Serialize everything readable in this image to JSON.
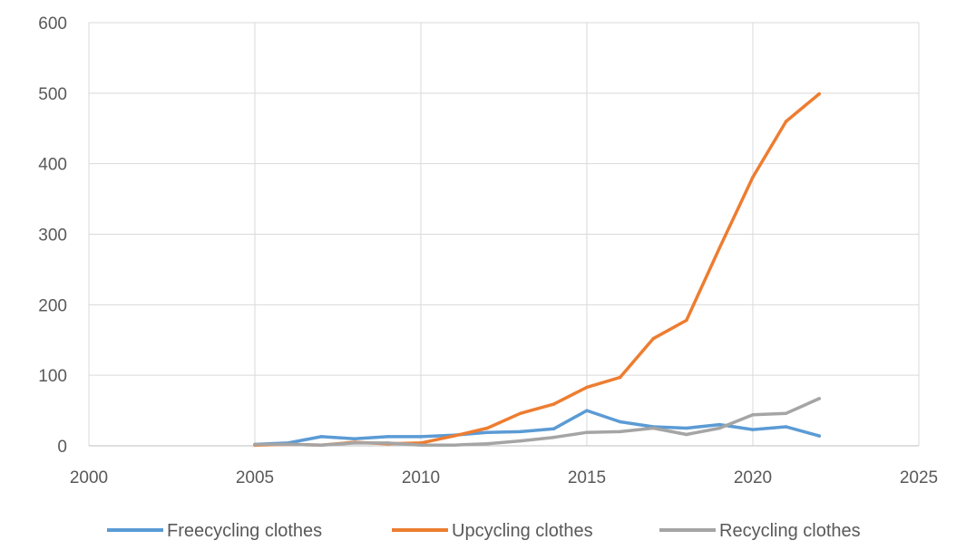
{
  "chart_data": {
    "type": "scatter",
    "title": "",
    "xlabel": "",
    "ylabel": "",
    "xlim": [
      2000,
      2025
    ],
    "ylim": [
      0,
      600
    ],
    "xticks": [
      2000,
      2005,
      2010,
      2015,
      2020,
      2025
    ],
    "yticks": [
      0,
      100,
      200,
      300,
      400,
      500,
      600
    ],
    "xtick_labels": [
      "2000",
      "2005",
      "2010",
      "2015",
      "2020",
      "2025"
    ],
    "ytick_labels": [
      "0",
      "100",
      "200",
      "300",
      "400",
      "500",
      "600"
    ],
    "grid": true,
    "legend_position": "bottom",
    "x": [
      2005,
      2006,
      2007,
      2008,
      2009,
      2010,
      2011,
      2012,
      2013,
      2014,
      2015,
      2016,
      2017,
      2018,
      2019,
      2020,
      2021,
      2022
    ],
    "series": [
      {
        "name": "Freecycling clothes",
        "color": "#5b9bd5",
        "values": [
          2,
          4,
          13,
          10,
          13,
          13,
          15,
          19,
          20,
          24,
          50,
          34,
          27,
          25,
          30,
          23,
          27,
          14
        ]
      },
      {
        "name": "Upcycling clothes",
        "color": "#ed7d31",
        "values": [
          1,
          2,
          1,
          5,
          3,
          4,
          14,
          25,
          46,
          59,
          83,
          97,
          152,
          178,
          281,
          381,
          460,
          499
        ]
      },
      {
        "name": "Recycling clothes",
        "color": "#a5a5a5",
        "values": [
          2,
          2,
          1,
          4,
          4,
          1,
          1,
          3,
          7,
          12,
          19,
          20,
          25,
          16,
          25,
          44,
          46,
          67
        ]
      }
    ]
  }
}
